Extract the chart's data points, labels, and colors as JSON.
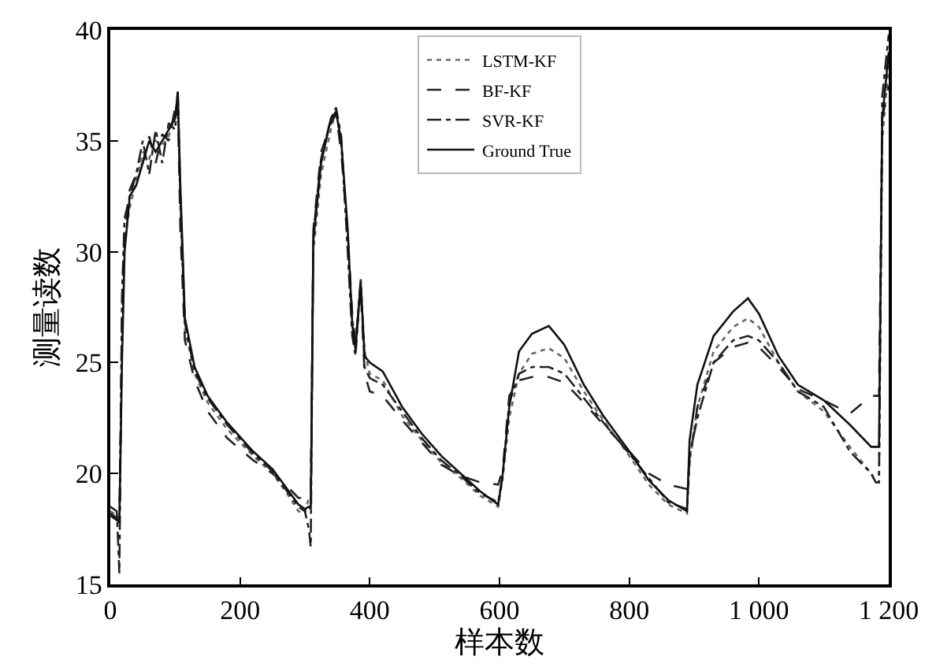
{
  "chart_data": {
    "type": "line",
    "xlabel": "样本数",
    "ylabel": "测量读数",
    "x": [
      0,
      10,
      14,
      18,
      22,
      30,
      40,
      50,
      60,
      70,
      80,
      90,
      100,
      104,
      108,
      115,
      130,
      150,
      180,
      220,
      250,
      270,
      290,
      300,
      306,
      309,
      313,
      325,
      340,
      348,
      356,
      366,
      373,
      378,
      386,
      392,
      400,
      420,
      450,
      480,
      510,
      540,
      570,
      598,
      605,
      615,
      630,
      650,
      676,
      700,
      730,
      760,
      800,
      830,
      860,
      889,
      893,
      905,
      930,
      960,
      983,
      1000,
      1030,
      1060,
      1100,
      1140,
      1173,
      1180,
      1185,
      1190,
      1200
    ],
    "series": [
      {
        "name": "LSTM-KF",
        "color": "#666666",
        "line_style": "dotted",
        "values": [
          18.3,
          18.1,
          18.0,
          26,
          30.5,
          32,
          33.2,
          34.5,
          34.2,
          35,
          34.8,
          35.2,
          36.2,
          37,
          32,
          26.5,
          24.5,
          23.2,
          22,
          20.8,
          20,
          19.2,
          18.3,
          18.2,
          18.9,
          18.8,
          30,
          33.5,
          35.5,
          36.4,
          34.8,
          30.5,
          27,
          26,
          28.7,
          25.5,
          24.5,
          24.2,
          22.6,
          21.5,
          20.5,
          19.8,
          19,
          18.5,
          19.8,
          22.5,
          24.5,
          25.4,
          25.65,
          25.2,
          23.7,
          22.4,
          20.8,
          19.5,
          18.6,
          18.2,
          20.5,
          23,
          25.5,
          26.6,
          27,
          26.6,
          25,
          23.7,
          22.8,
          21.2,
          20,
          19.6,
          19.6,
          35,
          38.5
        ]
      },
      {
        "name": "BF-KF",
        "color": "#222222",
        "line_style": "dashed",
        "values": [
          18.2,
          18.0,
          17.9,
          27,
          31,
          32.8,
          33.5,
          34,
          35.2,
          34,
          35.3,
          35,
          36.5,
          36.8,
          31,
          26,
          24.2,
          22.8,
          21.6,
          20.6,
          20,
          19.5,
          18.9,
          18.9,
          19,
          19,
          31,
          34.5,
          35.8,
          36.2,
          34.5,
          30.8,
          27.2,
          25.8,
          28.4,
          24.5,
          23.7,
          23.5,
          22.4,
          21.4,
          20.4,
          19.9,
          19.6,
          19.5,
          20.2,
          23.5,
          24.2,
          24.35,
          24.35,
          24.1,
          23.2,
          22.2,
          21,
          20,
          19.5,
          19.3,
          20.5,
          23,
          25,
          25.7,
          25.9,
          25.7,
          24.8,
          23.8,
          23.3,
          22.7,
          23.5,
          23.5,
          23.5,
          36,
          37.5
        ]
      },
      {
        "name": "SVR-KF",
        "color": "#222222",
        "line_style": "dashdot",
        "values": [
          18.5,
          18.3,
          15.5,
          28,
          31.5,
          32.5,
          33.5,
          35,
          33.5,
          35.5,
          34,
          35.8,
          35.5,
          37.3,
          32.5,
          26.8,
          24.6,
          23.4,
          22.2,
          20.9,
          20.1,
          19.3,
          18.5,
          18.3,
          17.5,
          16.7,
          30.8,
          34.2,
          36,
          36.5,
          35.2,
          30,
          26.2,
          25.3,
          28.8,
          24.8,
          24.3,
          24,
          22.8,
          21.6,
          20.6,
          19.9,
          19.1,
          18.7,
          19.9,
          23.2,
          24.5,
          24.8,
          24.8,
          24.5,
          23.4,
          22.3,
          20.9,
          19.8,
          18.7,
          18.4,
          20.8,
          22.5,
          25,
          26,
          26.2,
          26,
          25,
          23.7,
          23,
          21,
          20,
          19.6,
          19.6,
          37,
          39.8
        ]
      },
      {
        "name": "Ground True",
        "color": "#111111",
        "line_style": "solid",
        "values": [
          18.1,
          17.9,
          17.8,
          25,
          30,
          32.5,
          33,
          34,
          35,
          34.5,
          35,
          35.5,
          36,
          37.2,
          33,
          27,
          24.8,
          23.5,
          22.3,
          21,
          20.2,
          19.4,
          18.6,
          18.4,
          18.5,
          18.4,
          30.5,
          34,
          36,
          36.3,
          35,
          31,
          26.7,
          25.6,
          28.6,
          25.3,
          25,
          24.6,
          23,
          21.8,
          20.8,
          20,
          19.2,
          18.6,
          20,
          23,
          25.5,
          26.3,
          26.65,
          25.8,
          24,
          22.6,
          21,
          19.7,
          18.8,
          18.3,
          21.5,
          24,
          26.2,
          27.3,
          27.9,
          27.2,
          25.3,
          24,
          23.3,
          22.2,
          21.2,
          21.2,
          21.2,
          36,
          39
        ]
      }
    ],
    "xlim": [
      0,
      1200
    ],
    "xticks": [
      0,
      200,
      400,
      600,
      800,
      {
        "value": 1000,
        "label": "1 000"
      },
      {
        "value": 1200,
        "label": "1 200"
      }
    ],
    "ylim": [
      15,
      40
    ],
    "yticks": [
      15,
      20,
      25,
      30,
      35,
      40
    ],
    "legend": "top"
  }
}
